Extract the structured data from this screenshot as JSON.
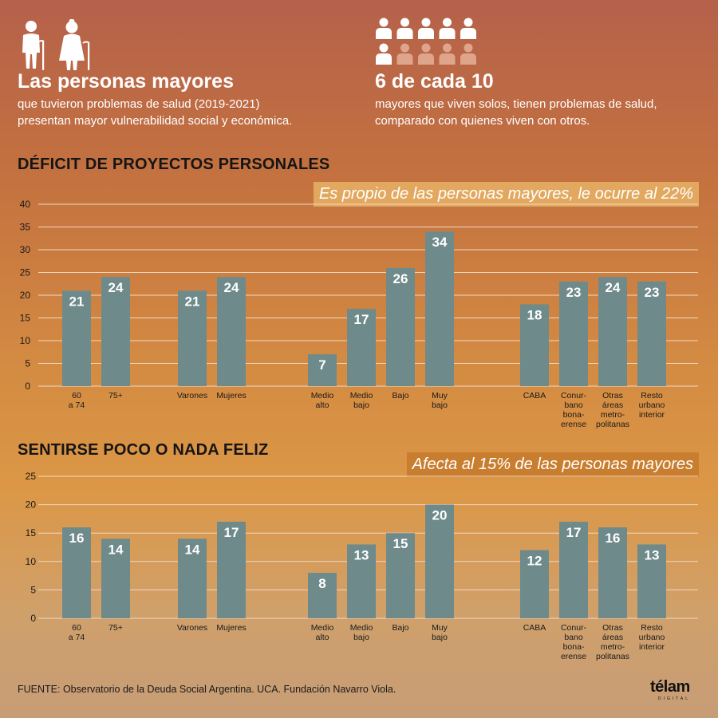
{
  "header_left": {
    "title": "Las personas mayores",
    "line1": "que tuvieron problemas de salud (2019-2021)",
    "line2": "presentan mayor vulnerabilidad social y económica."
  },
  "header_right": {
    "title": "6 de cada 10",
    "line1": "mayores que viven solos, tienen problemas de salud,",
    "line2": "comparado con quienes viven con otros.",
    "people_total": 10,
    "people_highlighted": 6
  },
  "colors": {
    "bar": "#6f8a8a",
    "grid": "#f0d9c0",
    "banner1": "#e3a85f",
    "banner2": "#c97e2f",
    "icon_light": "#ffffff",
    "icon_dim": "#dfa58c"
  },
  "source": "FUENTE: Observatorio de la Deuda Social Argentina. UCA. Fundación Navarro Viola.",
  "logo": {
    "name": "télam",
    "sub": "DIGITAL"
  },
  "chart_data": [
    {
      "type": "bar",
      "title": "DÉFICIT DE PROYECTOS PERSONALES",
      "annotation": "Es propio de las personas mayores, le ocurre al 22%",
      "ylim": [
        0,
        40
      ],
      "yticks": [
        0,
        5,
        10,
        15,
        20,
        25,
        30,
        35,
        40
      ],
      "groups": [
        {
          "categories": [
            [
              "60",
              "a 74"
            ],
            [
              "75+"
            ]
          ],
          "values": [
            21,
            24
          ]
        },
        {
          "categories": [
            [
              "Varones"
            ],
            [
              "Mujeres"
            ]
          ],
          "values": [
            21,
            24
          ]
        },
        {
          "categories": [
            [
              "Medio",
              "alto"
            ],
            [
              "Medio",
              "bajo"
            ],
            [
              "Bajo"
            ],
            [
              "Muy",
              "bajo"
            ]
          ],
          "values": [
            7,
            17,
            26,
            34
          ]
        },
        {
          "categories": [
            [
              "CABA"
            ],
            [
              "Conur-",
              "bano",
              "bona-",
              "erense"
            ],
            [
              "Otras",
              "áreas",
              "metro-",
              "politanas"
            ],
            [
              "Resto",
              "urbano",
              "interior"
            ]
          ],
          "values": [
            18,
            23,
            24,
            23
          ]
        }
      ]
    },
    {
      "type": "bar",
      "title": "SENTIRSE POCO O NADA FELIZ",
      "annotation": "Afecta al 15% de las personas mayores",
      "ylim": [
        0,
        25
      ],
      "yticks": [
        0,
        5,
        10,
        15,
        20,
        25
      ],
      "groups": [
        {
          "categories": [
            [
              "60",
              "a 74"
            ],
            [
              "75+"
            ]
          ],
          "values": [
            16,
            14
          ]
        },
        {
          "categories": [
            [
              "Varones"
            ],
            [
              "Mujeres"
            ]
          ],
          "values": [
            14,
            17
          ]
        },
        {
          "categories": [
            [
              "Medio",
              "alto"
            ],
            [
              "Medio",
              "bajo"
            ],
            [
              "Bajo"
            ],
            [
              "Muy",
              "bajo"
            ]
          ],
          "values": [
            8,
            13,
            15,
            20
          ]
        },
        {
          "categories": [
            [
              "CABA"
            ],
            [
              "Conur-",
              "bano",
              "bona-",
              "erense"
            ],
            [
              "Otras",
              "áreas",
              "metro-",
              "politanas"
            ],
            [
              "Resto",
              "urbano",
              "interior"
            ]
          ],
          "values": [
            12,
            17,
            16,
            13
          ]
        }
      ]
    }
  ]
}
